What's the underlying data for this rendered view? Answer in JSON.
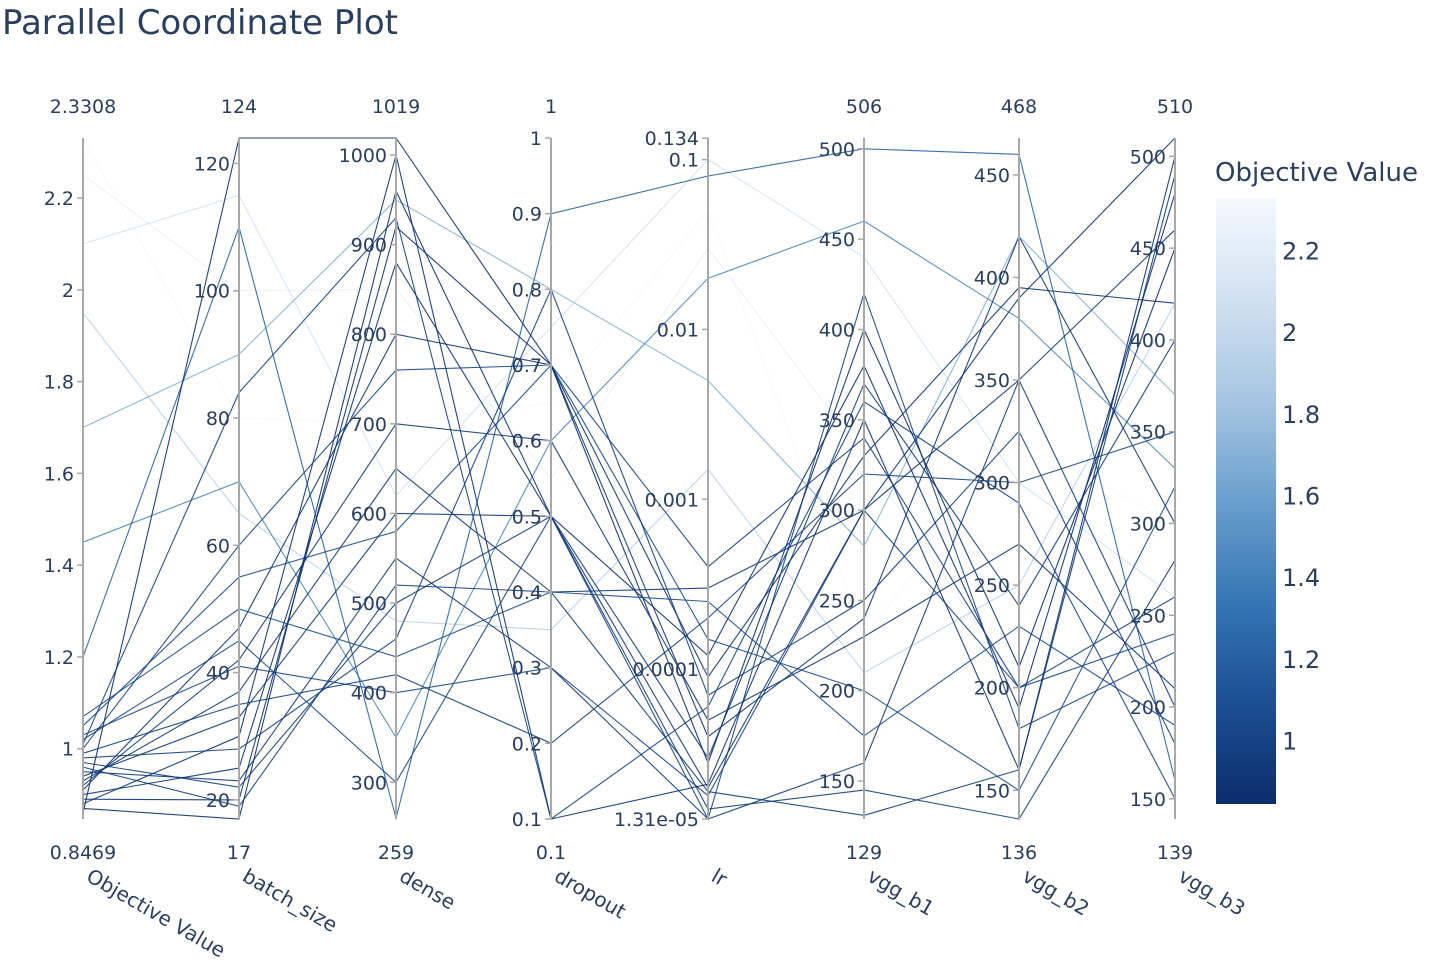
{
  "chart_data": {
    "type": "parallel_coordinates",
    "title": "Parallel Coordinate Plot",
    "colorbar": {
      "title": "Objective Value",
      "range": [
        0.8469,
        2.3308
      ],
      "ticks": [
        "1",
        "1.2",
        "1.4",
        "1.6",
        "1.8",
        "2",
        "2.2"
      ],
      "colorscale": [
        "#0b2d6b",
        "#1c4f93",
        "#3676b4",
        "#6a9fcd",
        "#a7c6e2",
        "#d2e1f1",
        "#f5f9fe"
      ]
    },
    "dimensions": [
      {
        "label": "Objective Value",
        "range": [
          0.8469,
          2.3308
        ],
        "min_label": "0.8469",
        "max_label": "2.3308",
        "scale": "linear",
        "ticks": [
          "1",
          "1.2",
          "1.4",
          "1.6",
          "1.8",
          "2",
          "2.2"
        ]
      },
      {
        "label": "batch_size",
        "range": [
          17,
          124
        ],
        "min_label": "17",
        "max_label": "124",
        "scale": "linear",
        "ticks": [
          "20",
          "40",
          "60",
          "80",
          "100",
          "120"
        ]
      },
      {
        "label": "dense",
        "range": [
          259,
          1019
        ],
        "min_label": "259",
        "max_label": "1019",
        "scale": "linear",
        "ticks": [
          "300",
          "400",
          "500",
          "600",
          "700",
          "800",
          "900",
          "1000"
        ]
      },
      {
        "label": "dropout",
        "range": [
          0.1,
          1
        ],
        "min_label": "0.1",
        "max_label": "1",
        "scale": "linear",
        "ticks": [
          "0.1",
          "0.2",
          "0.3",
          "0.4",
          "0.5",
          "0.6",
          "0.7",
          "0.8",
          "0.9",
          "1"
        ]
      },
      {
        "label": "lr",
        "range": [
          1.31e-05,
          0.134
        ],
        "min_label": "",
        "max_label": "",
        "scale": "log",
        "ticks": [
          "1.31e-05",
          "0.0001",
          "0.001",
          "0.01",
          "0.1",
          "0.134"
        ]
      },
      {
        "label": "vgg_b1",
        "range": [
          129,
          506
        ],
        "min_label": "129",
        "max_label": "506",
        "scale": "linear",
        "ticks": [
          "150",
          "200",
          "250",
          "300",
          "350",
          "400",
          "450",
          "500"
        ]
      },
      {
        "label": "vgg_b2",
        "range": [
          136,
          468
        ],
        "min_label": "136",
        "max_label": "468",
        "scale": "linear",
        "ticks": [
          "150",
          "200",
          "250",
          "300",
          "350",
          "400",
          "450"
        ]
      },
      {
        "label": "vgg_b3",
        "range": [
          139,
          510
        ],
        "min_label": "139",
        "max_label": "510",
        "scale": "linear",
        "ticks": [
          "150",
          "200",
          "250",
          "300",
          "350",
          "400",
          "450",
          "500"
        ]
      }
    ],
    "trials": [
      [
        0.86,
        124,
        1019,
        0.7,
        2.8e-05,
        400,
        210,
        450
      ],
      [
        0.87,
        17,
        960,
        0.5,
        0.00012,
        380,
        190,
        480
      ],
      [
        0.88,
        30,
        1000,
        0.1,
        2.1e-05,
        350,
        160,
        500
      ],
      [
        0.89,
        20,
        920,
        0.7,
        9e-05,
        330,
        395,
        420
      ],
      [
        0.9,
        25,
        880,
        0.5,
        2e-05,
        300,
        390,
        510
      ],
      [
        0.91,
        47,
        800,
        0.7,
        4e-05,
        240,
        420,
        300
      ],
      [
        0.92,
        42,
        700,
        0.6,
        5e-05,
        230,
        270,
        210
      ],
      [
        0.93,
        37,
        650,
        0.4,
        0.0003,
        300,
        350,
        460
      ],
      [
        0.94,
        33,
        600,
        0.5,
        3e-05,
        370,
        240,
        400
      ],
      [
        0.95,
        23,
        550,
        0.3,
        1.3e-05,
        160,
        350,
        200
      ],
      [
        0.96,
        19,
        520,
        0.4,
        1.9e-05,
        131,
        160,
        490
      ],
      [
        0.97,
        22,
        500,
        0.5,
        1.5e-05,
        145,
        136,
        280
      ],
      [
        0.98,
        28,
        460,
        0.8,
        7e-05,
        250,
        325,
        180
      ],
      [
        0.99,
        35,
        420,
        0.2,
        0.0002,
        320,
        300,
        350
      ],
      [
        1.0,
        60,
        760,
        0.7,
        0.0004,
        340,
        200,
        260
      ],
      [
        1.01,
        84,
        930,
        0.1,
        6e-05,
        360,
        290,
        150
      ],
      [
        1.02,
        45,
        300,
        0.5,
        1.3e-05,
        420,
        180,
        230
      ],
      [
        1.03,
        41,
        400,
        0.3,
        1.8e-05,
        300,
        200,
        240
      ],
      [
        1.05,
        55,
        580,
        0.7,
        0.00015,
        200,
        150,
        320
      ],
      [
        1.07,
        50,
        440,
        0.4,
        0.00025,
        175,
        230,
        190
      ],
      [
        1.2,
        110,
        260,
        0.9,
        0.08,
        500,
        460,
        160
      ],
      [
        1.45,
        70,
        350,
        0.6,
        0.02,
        460,
        380,
        330
      ],
      [
        1.7,
        90,
        950,
        0.8,
        0.005,
        280,
        420,
        370
      ],
      [
        1.95,
        65,
        480,
        0.35,
        0.0015,
        210,
        250,
        420
      ],
      [
        2.1,
        115,
        620,
        0.75,
        0.1,
        440,
        300,
        260
      ],
      [
        2.25,
        100,
        850,
        0.55,
        0.03,
        330,
        200,
        470
      ],
      [
        2.3308,
        80,
        700,
        0.65,
        0.05,
        230,
        320,
        300
      ]
    ]
  }
}
